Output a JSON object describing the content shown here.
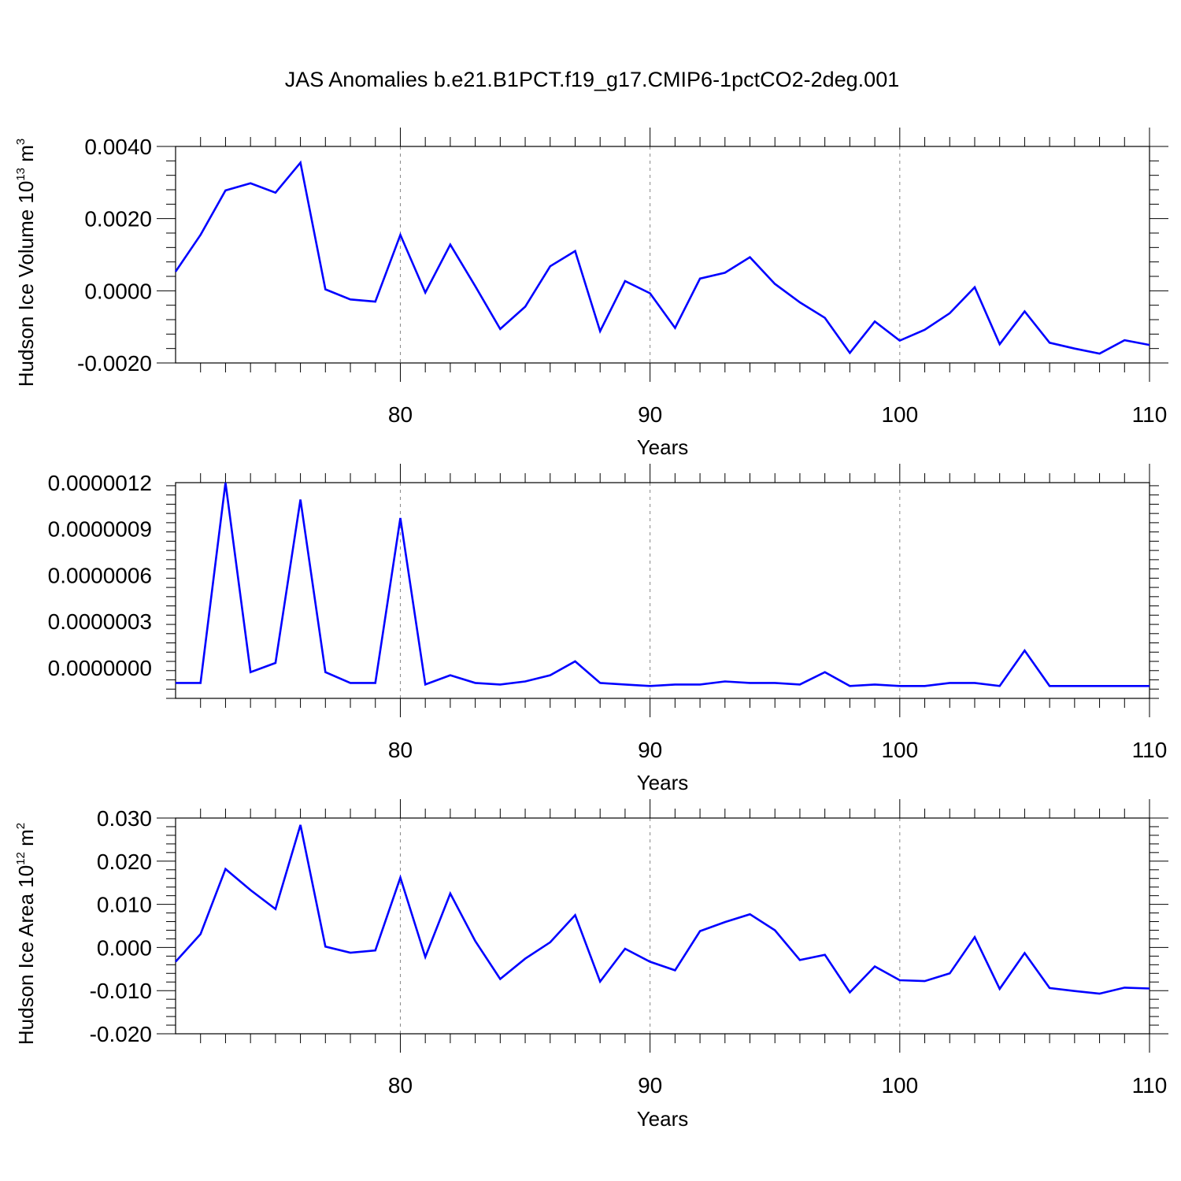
{
  "title": "JAS Anomalies b.e21.B1PCT.f19_g17.CMIP6-1pctCO2-2deg.001",
  "chart_data": [
    {
      "type": "line",
      "xlabel": "Years",
      "ylabel": {
        "base": "Hudson Ice Volume 10",
        "exp": "13",
        "unit": " m",
        "unit_exp": "3"
      },
      "xlim": [
        71,
        110
      ],
      "ylim": [
        -0.002,
        0.004
      ],
      "xticks": [
        80,
        90,
        100,
        110
      ],
      "xtick_labels": [
        "80",
        "90",
        "100",
        "110"
      ],
      "yticks": [
        -0.002,
        0,
        0.002,
        0.004
      ],
      "ytick_labels": [
        "-0.0020",
        "0.0000",
        "0.0020",
        "0.0040"
      ],
      "grid": "vertical dashed at major x ticks",
      "x": [
        71,
        72,
        73,
        74,
        75,
        76,
        77,
        78,
        79,
        80,
        81,
        82,
        83,
        84,
        85,
        86,
        87,
        88,
        89,
        90,
        91,
        92,
        93,
        94,
        95,
        96,
        97,
        98,
        99,
        100,
        101,
        102,
        103,
        104,
        105,
        106,
        107,
        108,
        109,
        110
      ],
      "series": [
        {
          "color": "#0000ff",
          "values": [
            0.00053,
            0.00155,
            0.00278,
            0.00298,
            0.00272,
            0.00355,
            4e-05,
            -0.00024,
            -0.0003,
            0.00155,
            -5e-05,
            0.00128,
            0.00013,
            -0.00106,
            -0.00044,
            0.00068,
            0.0011,
            -0.00112,
            0.00027,
            -7e-05,
            -0.00103,
            0.00034,
            0.0005,
            0.00093,
            0.00019,
            -0.00032,
            -0.00075,
            -0.00172,
            -0.00085,
            -0.00138,
            -0.00108,
            -0.00062,
            0.0001,
            -0.00148,
            -0.00057,
            -0.00144,
            -0.0016,
            -0.00174,
            -0.00137,
            -0.0015
          ]
        }
      ]
    },
    {
      "type": "line",
      "xlabel": "Years",
      "xlim": [
        71,
        110
      ],
      "ylim": [
        -2e-07,
        1.2e-06
      ],
      "xticks": [
        80,
        90,
        100,
        110
      ],
      "xtick_labels": [
        "80",
        "90",
        "100",
        "110"
      ],
      "yticks": [
        0,
        3e-07,
        6e-07,
        9e-07,
        1.2e-06
      ],
      "ytick_labels": [
        "0.0000000",
        "0.0000003",
        "0.0000006",
        "0.0000009",
        "0.0000012"
      ],
      "grid": "vertical dashed at major x ticks",
      "x": [
        71,
        72,
        73,
        74,
        75,
        76,
        77,
        78,
        79,
        80,
        81,
        82,
        83,
        84,
        85,
        86,
        87,
        88,
        89,
        90,
        91,
        92,
        93,
        94,
        95,
        96,
        97,
        98,
        99,
        100,
        101,
        102,
        103,
        104,
        105,
        106,
        107,
        108,
        109,
        110
      ],
      "series": [
        {
          "color": "#0000ff",
          "values": [
            -1e-07,
            -1e-07,
            1.2e-06,
            -3e-08,
            3e-08,
            1.09e-06,
            -3e-08,
            -1e-07,
            -1e-07,
            9.7e-07,
            -1.1e-07,
            -5e-08,
            -1e-07,
            -1.1e-07,
            -9e-08,
            -5e-08,
            4e-08,
            -1e-07,
            -1.1e-07,
            -1.2e-07,
            -1.1e-07,
            -1.1e-07,
            -9e-08,
            -1e-07,
            -1e-07,
            -1.1e-07,
            -3e-08,
            -1.2e-07,
            -1.1e-07,
            -1.2e-07,
            -1.2e-07,
            -1e-07,
            -1e-07,
            -1.2e-07,
            1.1e-07,
            -1.2e-07,
            -1.2e-07,
            -1.2e-07,
            -1.2e-07,
            -1.2e-07
          ]
        }
      ]
    },
    {
      "type": "line",
      "xlabel": "Years",
      "ylabel": {
        "base": "Hudson Ice Area 10",
        "exp": "12",
        "unit": " m",
        "unit_exp": "2"
      },
      "xlim": [
        71,
        110
      ],
      "ylim": [
        -0.02,
        0.03
      ],
      "xticks": [
        80,
        90,
        100,
        110
      ],
      "xtick_labels": [
        "80",
        "90",
        "100",
        "110"
      ],
      "yticks": [
        -0.02,
        -0.01,
        0,
        0.01,
        0.02,
        0.03
      ],
      "ytick_labels": [
        "-0.020",
        "-0.010",
        "0.000",
        "0.010",
        "0.020",
        "0.030"
      ],
      "grid": "vertical dashed at major x ticks",
      "x": [
        71,
        72,
        73,
        74,
        75,
        76,
        77,
        78,
        79,
        80,
        81,
        82,
        83,
        84,
        85,
        86,
        87,
        88,
        89,
        90,
        91,
        92,
        93,
        94,
        95,
        96,
        97,
        98,
        99,
        100,
        101,
        102,
        103,
        104,
        105,
        106,
        107,
        108,
        109,
        110
      ],
      "series": [
        {
          "color": "#0000ff",
          "values": [
            -0.0033,
            0.0031,
            0.0182,
            0.0133,
            0.0089,
            0.0284,
            0.0002,
            -0.0012,
            -0.0007,
            0.0162,
            -0.0022,
            0.0125,
            0.0015,
            -0.0073,
            -0.0026,
            0.0012,
            0.0075,
            -0.0079,
            -0.0003,
            -0.0033,
            -0.0053,
            0.0038,
            0.0059,
            0.0077,
            0.004,
            -0.0029,
            -0.0017,
            -0.0104,
            -0.0044,
            -0.0076,
            -0.0078,
            -0.006,
            0.0024,
            -0.0096,
            -0.0013,
            -0.0094,
            -0.0101,
            -0.0107,
            -0.0093,
            -0.0095
          ]
        }
      ]
    }
  ]
}
